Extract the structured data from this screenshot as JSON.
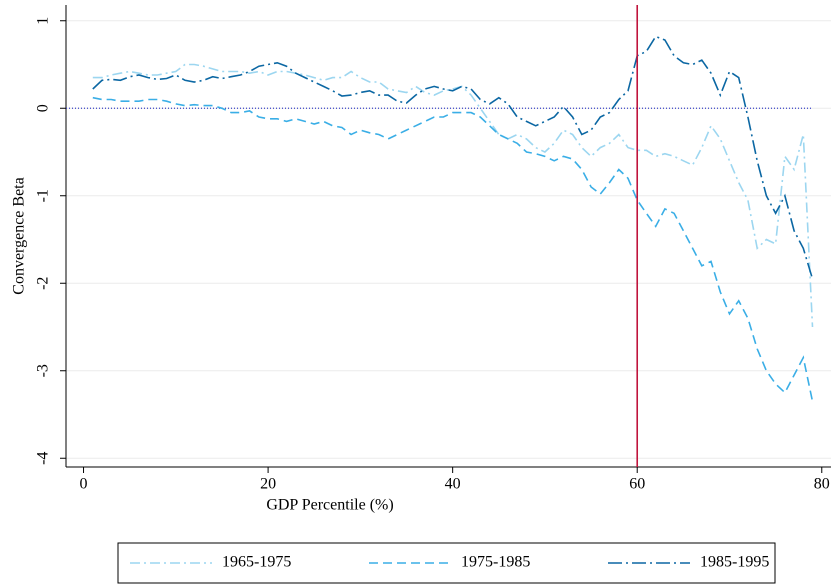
{
  "chart_data": {
    "type": "line",
    "x_label": "GDP Percentile (%)",
    "y_label": "Convergence Beta",
    "x": [
      1,
      2,
      3,
      4,
      5,
      6,
      7,
      8,
      9,
      10,
      11,
      12,
      13,
      14,
      15,
      16,
      17,
      18,
      19,
      20,
      21,
      22,
      23,
      24,
      25,
      26,
      27,
      28,
      29,
      30,
      31,
      32,
      33,
      34,
      35,
      36,
      37,
      38,
      39,
      40,
      41,
      42,
      43,
      44,
      45,
      46,
      47,
      48,
      49,
      50,
      51,
      52,
      53,
      54,
      55,
      56,
      57,
      58,
      59,
      60,
      61,
      62,
      63,
      64,
      65,
      66,
      67,
      68,
      69,
      70,
      71,
      72,
      73,
      74,
      75,
      76,
      77,
      78,
      79
    ],
    "series": [
      {
        "name": "1965-1975",
        "color": "#9cd6f0",
        "style": "dash-dot",
        "values": [
          0.35,
          0.35,
          0.38,
          0.4,
          0.42,
          0.4,
          0.38,
          0.38,
          0.4,
          0.42,
          0.5,
          0.5,
          0.48,
          0.45,
          0.42,
          0.42,
          0.42,
          0.4,
          0.42,
          0.38,
          0.42,
          0.42,
          0.4,
          0.38,
          0.35,
          0.32,
          0.35,
          0.35,
          0.42,
          0.35,
          0.3,
          0.3,
          0.22,
          0.2,
          0.18,
          0.25,
          0.18,
          0.15,
          0.2,
          0.22,
          0.25,
          0.15,
          0.0,
          -0.15,
          -0.3,
          -0.35,
          -0.3,
          -0.35,
          -0.45,
          -0.5,
          -0.4,
          -0.25,
          -0.3,
          -0.45,
          -0.55,
          -0.45,
          -0.4,
          -0.3,
          -0.45,
          -0.48,
          -0.48,
          -0.55,
          -0.52,
          -0.55,
          -0.6,
          -0.65,
          -0.45,
          -0.2,
          -0.35,
          -0.6,
          -0.85,
          -1.05,
          -1.6,
          -1.5,
          -1.55,
          -0.55,
          -0.7,
          -0.3,
          -2.5
        ]
      },
      {
        "name": "1975-1985",
        "color": "#3aaee6",
        "style": "dash",
        "values": [
          0.12,
          0.1,
          0.1,
          0.08,
          0.08,
          0.08,
          0.1,
          0.1,
          0.08,
          0.05,
          0.03,
          0.04,
          0.03,
          0.03,
          0.0,
          -0.05,
          -0.05,
          -0.03,
          -0.1,
          -0.12,
          -0.12,
          -0.15,
          -0.12,
          -0.15,
          -0.18,
          -0.15,
          -0.2,
          -0.22,
          -0.3,
          -0.25,
          -0.28,
          -0.3,
          -0.35,
          -0.3,
          -0.25,
          -0.2,
          -0.15,
          -0.1,
          -0.1,
          -0.05,
          -0.05,
          -0.05,
          -0.1,
          -0.2,
          -0.3,
          -0.35,
          -0.4,
          -0.5,
          -0.52,
          -0.55,
          -0.6,
          -0.55,
          -0.58,
          -0.7,
          -0.9,
          -0.98,
          -0.85,
          -0.7,
          -0.8,
          -1.05,
          -1.2,
          -1.35,
          -1.15,
          -1.2,
          -1.4,
          -1.6,
          -1.8,
          -1.75,
          -2.1,
          -2.35,
          -2.2,
          -2.4,
          -2.75,
          -3.0,
          -3.15,
          -3.25,
          -3.05,
          -2.85,
          -3.35
        ]
      },
      {
        "name": "1985-1995",
        "color": "#0b67a3",
        "style": "long-dash-dot",
        "values": [
          0.22,
          0.32,
          0.33,
          0.32,
          0.36,
          0.38,
          0.35,
          0.33,
          0.34,
          0.38,
          0.32,
          0.3,
          0.32,
          0.36,
          0.34,
          0.36,
          0.38,
          0.42,
          0.48,
          0.5,
          0.52,
          0.48,
          0.4,
          0.35,
          0.3,
          0.25,
          0.2,
          0.14,
          0.15,
          0.18,
          0.2,
          0.15,
          0.15,
          0.08,
          0.06,
          0.15,
          0.22,
          0.25,
          0.22,
          0.2,
          0.25,
          0.22,
          0.1,
          0.05,
          0.12,
          0.05,
          -0.1,
          -0.15,
          -0.2,
          -0.15,
          -0.1,
          0.02,
          -0.1,
          -0.3,
          -0.25,
          -0.1,
          -0.05,
          0.1,
          0.2,
          0.6,
          0.65,
          0.82,
          0.78,
          0.6,
          0.52,
          0.5,
          0.55,
          0.4,
          0.15,
          0.42,
          0.35,
          -0.1,
          -0.6,
          -1.0,
          -1.2,
          -1.0,
          -1.4,
          -1.6,
          -1.95
        ]
      }
    ],
    "xlim": [
      -1.9,
      81
    ],
    "ylim": [
      -4.1,
      1.18
    ],
    "xticks": [
      0,
      20,
      40,
      60,
      80
    ],
    "yticks": [
      -4,
      -3,
      -2,
      -1,
      0,
      1
    ],
    "vline": 60,
    "vline_color": "#c0143c",
    "hline": 0,
    "hline_color": "#3a44c8",
    "grid": true
  }
}
